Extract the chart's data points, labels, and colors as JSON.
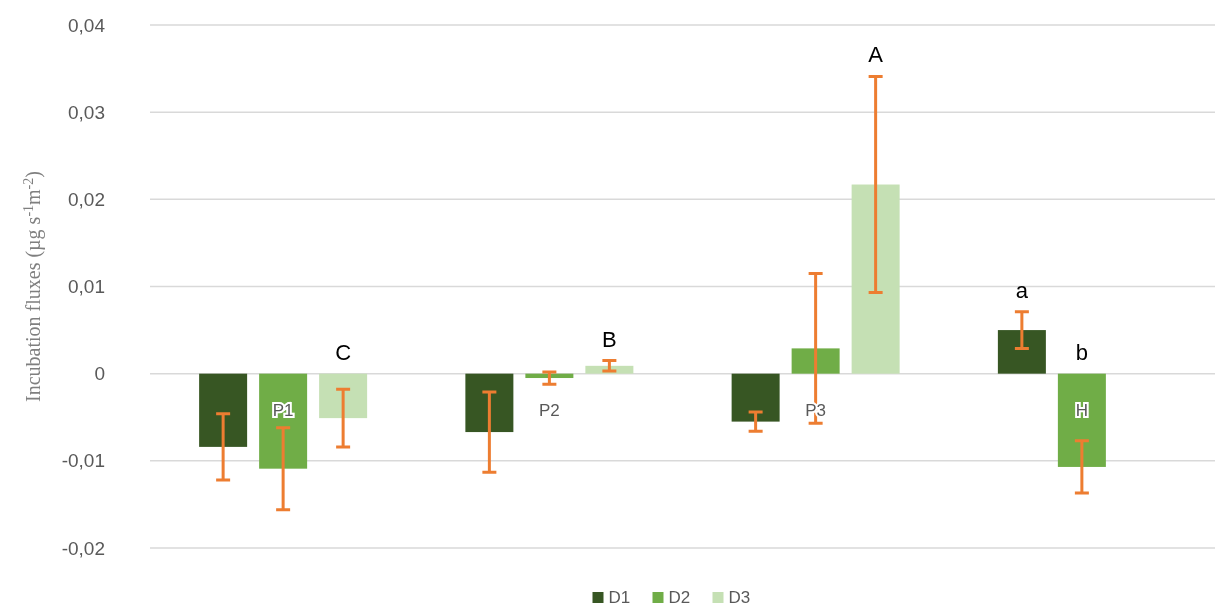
{
  "chart_data": {
    "type": "bar",
    "ylabel": "Incubation fluxes (µg s$^{-1}$m$^{-2}$)",
    "categories": [
      "P1",
      "P2",
      "P3",
      "H"
    ],
    "series": [
      {
        "name": "D1",
        "color": "#375623",
        "values": [
          -0.0084,
          -0.0067,
          -0.0055,
          0.005
        ],
        "errors": [
          0.0038,
          0.0046,
          0.0011,
          0.0021
        ]
      },
      {
        "name": "D2",
        "color": "#70ad47",
        "values": [
          -0.0109,
          -0.0005,
          0.0029,
          -0.0107
        ],
        "errors": [
          0.0047,
          0.0007,
          0.0086,
          0.003
        ]
      },
      {
        "name": "D3",
        "color": "#c5e0b4",
        "values": [
          -0.0051,
          0.0009,
          0.0217,
          null
        ],
        "errors": [
          0.0033,
          0.0006,
          0.0124,
          null
        ]
      }
    ],
    "ylim": [
      -0.02,
      0.04
    ],
    "yticks": [
      {
        "value": -0.02,
        "label": "-0,02"
      },
      {
        "value": -0.01,
        "label": "-0,01"
      },
      {
        "value": 0,
        "label": "0"
      },
      {
        "value": 0.01,
        "label": "0,01"
      },
      {
        "value": 0.02,
        "label": "0,02"
      },
      {
        "value": 0.03,
        "label": "0,03"
      },
      {
        "value": 0.04,
        "label": "0,04"
      }
    ],
    "annotations": [
      "C",
      "B",
      "A",
      "a",
      "b"
    ],
    "grid": "y",
    "legend": "bottom"
  }
}
